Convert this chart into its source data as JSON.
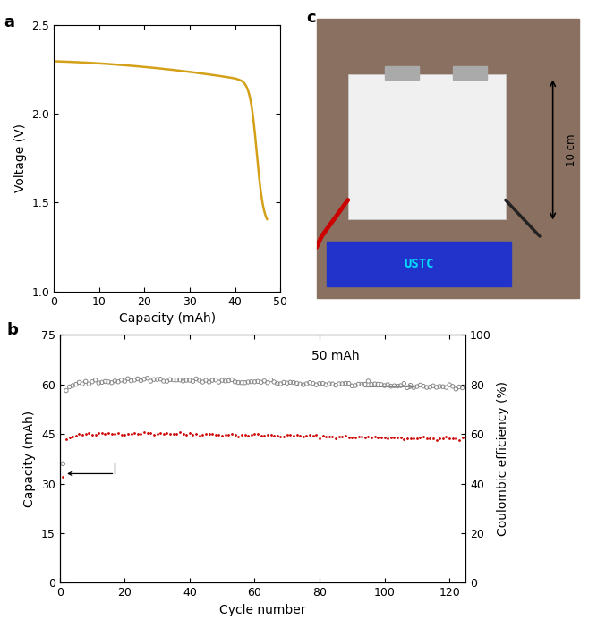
{
  "panel_a": {
    "xlabel": "Capacity (mAh)",
    "ylabel": "Voltage (V)",
    "label": "a",
    "xlim": [
      0,
      50
    ],
    "ylim": [
      1.0,
      2.5
    ],
    "xticks": [
      0,
      10,
      20,
      30,
      40,
      50
    ],
    "yticks": [
      1.0,
      1.5,
      2.0,
      2.5
    ],
    "line_color": "#D4A017",
    "line_width": 1.8
  },
  "panel_b": {
    "xlabel": "Cycle number",
    "ylabel_left": "Capacity (mAh)",
    "ylabel_right": "Coulombic efficiency (%)",
    "label": "b",
    "xlim": [
      0,
      125
    ],
    "ylim_left": [
      0,
      75
    ],
    "ylim_right": [
      0,
      100
    ],
    "xticks": [
      0,
      20,
      40,
      60,
      80,
      100,
      120
    ],
    "yticks_left": [
      0,
      15,
      30,
      45,
      60,
      75
    ],
    "yticks_right": [
      0,
      20,
      40,
      60,
      80,
      100
    ],
    "capacity_color": "#CC0000",
    "ce_color": "#888888",
    "annotation_text": "50 mAh"
  },
  "panel_c": {
    "label": "c"
  }
}
